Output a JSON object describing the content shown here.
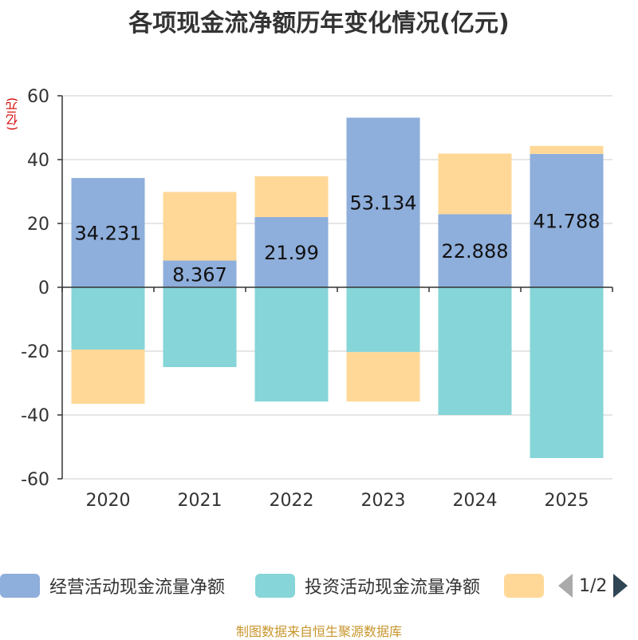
{
  "chart_data": {
    "type": "bar",
    "stacked": true,
    "title": "各项现金流净额历年变化情况(亿元)",
    "ylabel": "(亿元)",
    "xlabel": "",
    "ylim": [
      -60,
      60
    ],
    "yticks": [
      60,
      40,
      20,
      0,
      -20,
      -40,
      -60
    ],
    "categories": [
      "2020",
      "2021",
      "2022",
      "2023",
      "2024",
      "2025"
    ],
    "series": [
      {
        "name": "经营活动现金流量净额",
        "color": "#8eaedb",
        "values": [
          34.231,
          8.367,
          21.99,
          53.134,
          22.888,
          41.788
        ],
        "show_labels": true
      },
      {
        "name": "投资活动现金流量净额",
        "color": "#86d5d8",
        "values": [
          -19.5,
          -25.0,
          -35.8,
          -20.3,
          -40.0,
          -53.5
        ],
        "show_labels": false
      },
      {
        "name": "",
        "color": "#ffd898",
        "values": [
          -17.0,
          21.5,
          12.8,
          -15.5,
          19.0,
          2.5
        ],
        "show_labels": false
      }
    ],
    "legend_position": "bottom"
  },
  "legend": {
    "page_indicator": "1/2"
  },
  "source": "制图数据来自恒生聚源数据库"
}
